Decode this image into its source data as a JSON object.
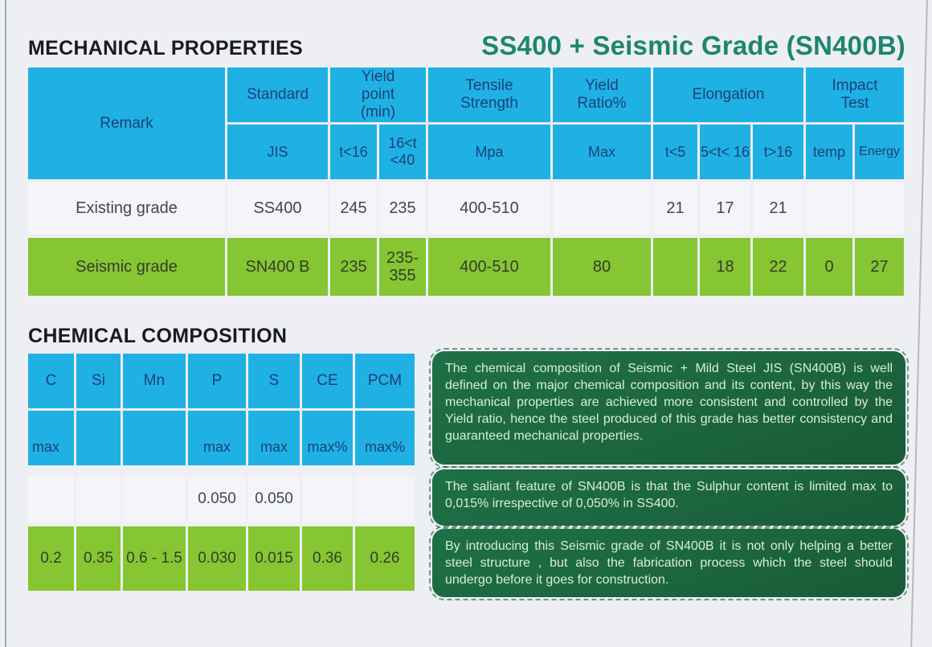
{
  "headings": {
    "mechanical": "MECHANICAL PROPERTIES",
    "main_title": "SS400 + Seismic Grade (SN400B)",
    "chemical": "CHEMICAL COMPOSITION"
  },
  "mech_table": {
    "group_headers": {
      "remark": "Remark",
      "standard": "Standard",
      "yield_point": "Yield point (min)",
      "tensile_strength": "Tensile Strength",
      "yield_ratio": "Yield Ratio%",
      "elongation": "Elongation",
      "impact_test": "Impact Test"
    },
    "sub_headers": {
      "jis": "JIS",
      "t_lt_16": "t<16",
      "t_16_40": "16<t <40",
      "mpa": "Mpa",
      "max": "Max",
      "t_lt_5": "t<5",
      "t_5_16": "5<t< 16",
      "t_gt_16": "t>16",
      "temp": "temp",
      "energy": "Energy"
    },
    "rows": [
      {
        "remark": "Existing grade",
        "jis": "SS400",
        "yield_t16": "245",
        "yield_t1640": "235",
        "tensile": "400-510",
        "yield_ratio": "",
        "elong_t5": "21",
        "elong_t516": "17",
        "elong_t16": "21",
        "temp": "",
        "energy": ""
      },
      {
        "remark": "Seismic grade",
        "jis": "SN400 B",
        "yield_t16": "235",
        "yield_t1640": "235-355",
        "tensile": "400-510",
        "yield_ratio": "80",
        "elong_t5": "",
        "elong_t516": "18",
        "elong_t16": "22",
        "temp": "0",
        "energy": "27"
      }
    ]
  },
  "chem_table": {
    "elements": [
      "C",
      "Si",
      "Mn",
      "P",
      "S",
      "CE",
      "PCM"
    ],
    "limits": [
      "max",
      "",
      "",
      "max",
      "max",
      "max%",
      "max%"
    ],
    "rows": [
      {
        "values": [
          "",
          "",
          "",
          "0.050",
          "0.050",
          "",
          ""
        ]
      },
      {
        "values": [
          "0.2",
          "0.35",
          "0.6 - 1.5",
          "0.030",
          "0.015",
          "0.36",
          "0.26"
        ]
      }
    ]
  },
  "notes": [
    "The chemical composition of Seismic + Mild Steel JIS (SN400B) is well defined on the major chemical composition and its content, by this way the mechanical properties are achieved more consistent and controlled by the Yield ratio, hence the steel produced of this grade has better consistency and guaranteed mechanical properties.",
    "The saliant feature of SN400B is that the Sulphur content is limited max to 0,015% irrespective of 0,050% in SS400.",
    "By introducing this Seismic grade of SN400B it is not only helping a better steel structure , but also the fabrication process which the steel should undergo before it goes for construction."
  ],
  "colors": {
    "header_cyan": "#1fb1e4",
    "row_green": "#85c632",
    "note_dark_green": "#1c663f",
    "title_teal": "#1e8570",
    "header_text_navy": "#1c4079"
  }
}
